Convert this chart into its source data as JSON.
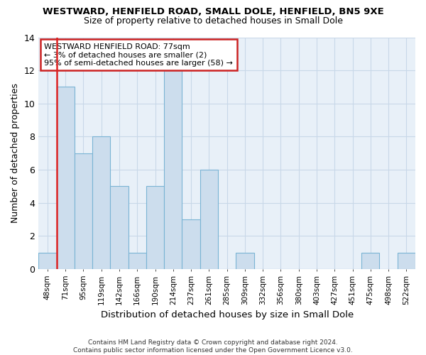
{
  "title": "WESTWARD, HENFIELD ROAD, SMALL DOLE, HENFIELD, BN5 9XE",
  "subtitle": "Size of property relative to detached houses in Small Dole",
  "xlabel_bottom": "Distribution of detached houses by size in Small Dole",
  "ylabel": "Number of detached properties",
  "categories": [
    "48sqm",
    "71sqm",
    "95sqm",
    "119sqm",
    "142sqm",
    "166sqm",
    "190sqm",
    "214sqm",
    "237sqm",
    "261sqm",
    "285sqm",
    "309sqm",
    "332sqm",
    "356sqm",
    "380sqm",
    "403sqm",
    "427sqm",
    "451sqm",
    "475sqm",
    "498sqm",
    "522sqm"
  ],
  "values": [
    1,
    11,
    7,
    8,
    5,
    1,
    5,
    12,
    3,
    6,
    0,
    1,
    0,
    0,
    0,
    0,
    0,
    0,
    1,
    0,
    1
  ],
  "bar_color": "#ccdded",
  "bar_edge_color": "#7ab4d4",
  "red_line_bar_index": 1,
  "red_line_color": "#dd2222",
  "annotation_box_text": "WESTWARD HENFIELD ROAD: 77sqm\n← 3% of detached houses are smaller (2)\n95% of semi-detached houses are larger (58) →",
  "annotation_box_edge_color": "#cc2222",
  "annotation_box_bg": "#ffffff",
  "ylim": [
    0,
    14
  ],
  "yticks": [
    0,
    2,
    4,
    6,
    8,
    10,
    12,
    14
  ],
  "background_color": "#ffffff",
  "plot_bg_color": "#e8f0f8",
  "grid_color": "#c8d8e8",
  "footnote": "Contains HM Land Registry data © Crown copyright and database right 2024.\nContains public sector information licensed under the Open Government Licence v3.0."
}
